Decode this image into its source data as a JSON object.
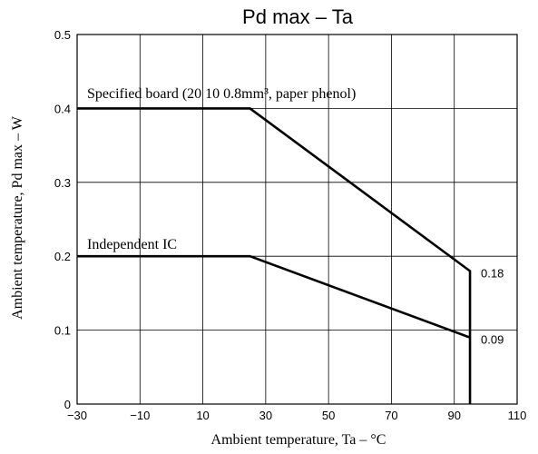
{
  "chart_data": {
    "type": "line",
    "title": "Pd max  –  Ta",
    "xlabel": "Ambient temperature, Ta  –  °C",
    "ylabel": "Ambient temperature, Pd max  –  W",
    "xlim": [
      -30,
      110
    ],
    "ylim": [
      0,
      0.5
    ],
    "x_ticks": [
      "−30",
      "−10",
      "10",
      "30",
      "50",
      "70",
      "90",
      "110"
    ],
    "y_ticks": [
      "0",
      "0.1",
      "0.2",
      "0.3",
      "0.4",
      "0.5"
    ],
    "grid": true,
    "series": [
      {
        "name": "Specified board (20    10    0.8mm³, paper phenol)",
        "x": [
          -30,
          25,
          95,
          95
        ],
        "y": [
          0.4,
          0.4,
          0.18,
          0
        ]
      },
      {
        "name": "Independent IC",
        "x": [
          -30,
          25,
          95
        ],
        "y": [
          0.2,
          0.2,
          0.09
        ]
      }
    ],
    "data_labels": [
      {
        "text": "0.18",
        "x": 95,
        "y": 0.18
      },
      {
        "text": "0.09",
        "x": 95,
        "y": 0.09
      }
    ]
  }
}
